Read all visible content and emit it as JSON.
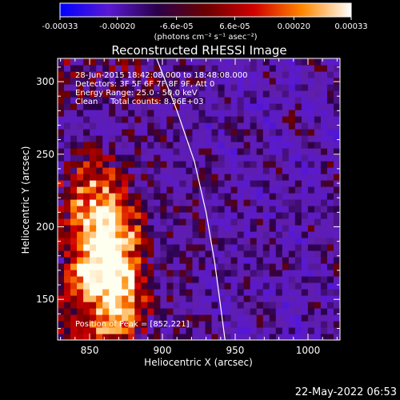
{
  "chart_data": {
    "type": "heatmap",
    "title": "Reconstructed RHESSI Image",
    "xlabel": "Heliocentric X (arcsec)",
    "ylabel": "Heliocentric Y (arcsec)",
    "xlim": [
      828,
      1022
    ],
    "ylim": [
      122,
      316
    ],
    "x_ticks": [
      850,
      900,
      950,
      1000
    ],
    "y_ticks": [
      150,
      200,
      250,
      300
    ],
    "colorbar": {
      "ticks": [
        "-0.00033",
        "-0.00020",
        "-6.6e-05",
        "6.6e-05",
        "0.00020",
        "0.00033"
      ],
      "tick_values": [
        -0.00033,
        -0.0002,
        -6.6e-05,
        6.6e-05,
        0.0002,
        0.00033
      ],
      "range": [
        -0.00033,
        0.00033
      ],
      "units": "(photons cm⁻² s⁻¹ asec⁻²)",
      "colors": [
        "#0000ff",
        "#5a19d2",
        "#2a004a",
        "#6a0000",
        "#d00000",
        "#ff8800",
        "#ffffff"
      ]
    },
    "annotations": [
      "28-Jun-2015 18:42:08.000 to 18:48:08.000",
      "Detectors: 3F 5F 6F 7F 8F 9F, Att 0",
      "Energy Range: 25.0 - 50.0 keV",
      "Clean     Total counts: 8.36E+03"
    ],
    "peak_label": "Position of Peak = [852,221]",
    "peak": [
      852,
      221
    ],
    "emission_region": {
      "core_x_range": [
        842,
        880
      ],
      "core_y_range": [
        145,
        232
      ]
    },
    "limb_curve": [
      [
        896,
        316
      ],
      [
        910,
        280
      ],
      [
        922,
        245
      ],
      [
        930,
        210
      ],
      [
        936,
        175
      ],
      [
        940,
        145
      ],
      [
        943,
        122
      ]
    ],
    "grid": false
  },
  "footer": {
    "date": "22-May-2022 06:53"
  }
}
